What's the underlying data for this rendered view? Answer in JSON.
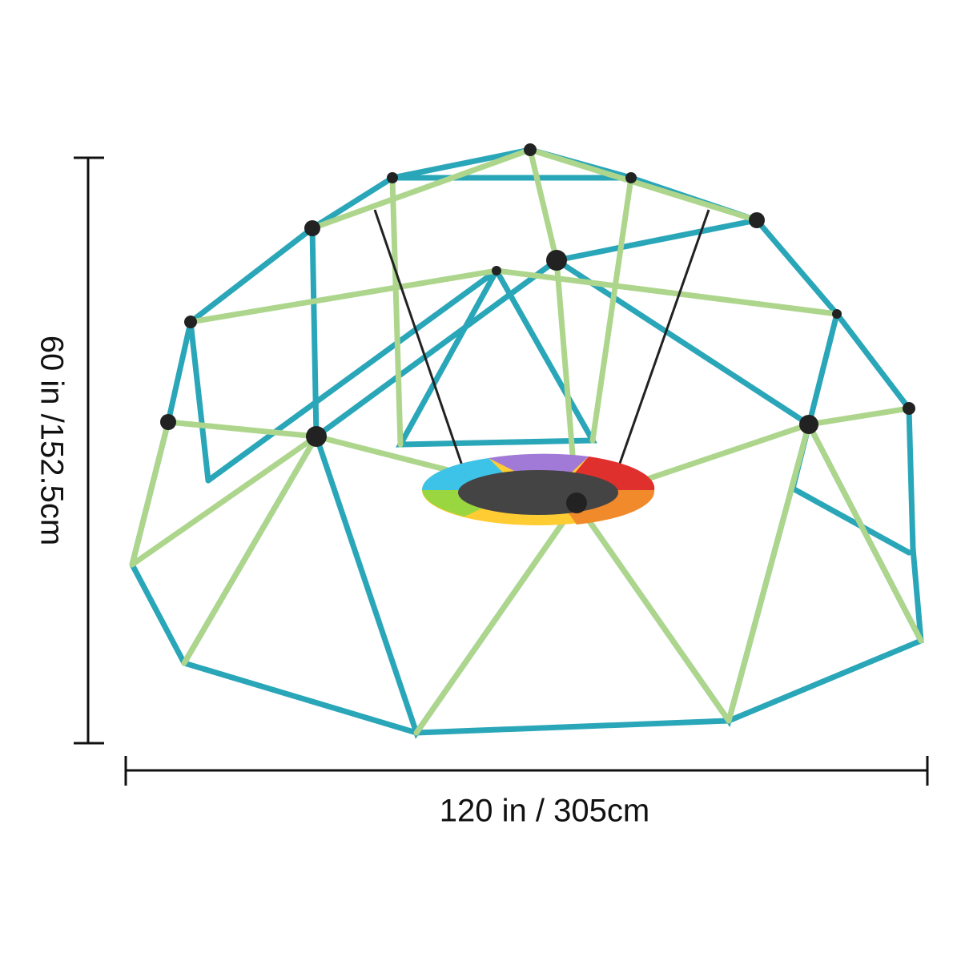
{
  "dimensions": {
    "height": "60 in /152.5cm",
    "width": "120 in / 305cm"
  }
}
